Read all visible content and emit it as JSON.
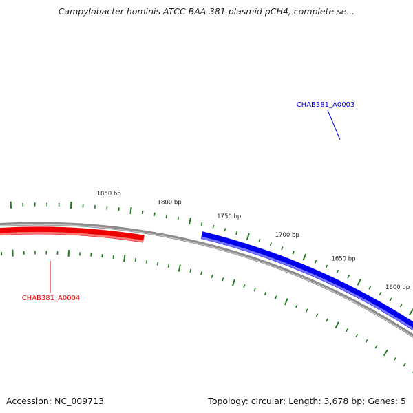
{
  "title": "Campylobacter hominis ATCC BAA-381 plasmid pCH4, complete se...",
  "footer": {
    "accession": "Accession: NC_009713",
    "summary": "Topology: circular; Length: 3,678 bp; Genes: 5"
  },
  "map": {
    "ruler_labels": [
      "1600 bp",
      "1650 bp",
      "1700 bp",
      "1750 bp",
      "1800 bp",
      "1850 bp"
    ],
    "genes": [
      {
        "label": "CHAB381_A0003",
        "strand": "forward",
        "color": "#0000ee",
        "light_color": "#7777ff"
      },
      {
        "label": "CHAB381_A0004",
        "strand": "reverse",
        "color": "#ee0000",
        "light_color": "#ff7777"
      }
    ],
    "colors": {
      "backbone": "#8c8c8c",
      "backbone_light": "#c8c8c8",
      "tick": "#1f7a1f",
      "ruler_label": "#222222"
    }
  }
}
